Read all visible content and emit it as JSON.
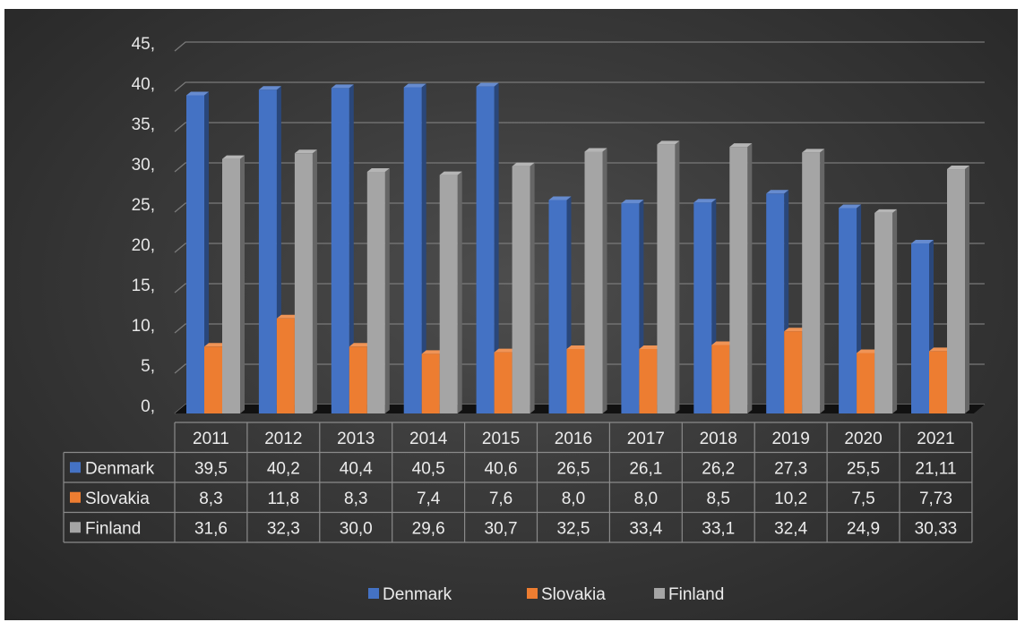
{
  "chart_data": {
    "type": "bar",
    "categories": [
      "2011",
      "2012",
      "2013",
      "2014",
      "2015",
      "2016",
      "2017",
      "2018",
      "2019",
      "2020",
      "2021"
    ],
    "series": [
      {
        "name": "Denmark",
        "color": "#4472c4",
        "values": [
          39.5,
          40.2,
          40.4,
          40.5,
          40.6,
          26.5,
          26.1,
          26.2,
          27.3,
          25.5,
          21.11
        ],
        "labels": [
          "39,5",
          "40,2",
          "40,4",
          "40,5",
          "40,6",
          "26,5",
          "26,1",
          "26,2",
          "27,3",
          "25,5",
          "21,11"
        ]
      },
      {
        "name": "Slovakia",
        "color": "#ed7d31",
        "values": [
          8.3,
          11.8,
          8.3,
          7.4,
          7.6,
          8.0,
          8.0,
          8.5,
          10.2,
          7.5,
          7.73
        ],
        "labels": [
          "8,3",
          "11,8",
          "8,3",
          "7,4",
          "7,6",
          "8,0",
          "8,0",
          "8,5",
          "10,2",
          "7,5",
          "7,73"
        ]
      },
      {
        "name": "Finland",
        "color": "#a5a5a5",
        "values": [
          31.6,
          32.3,
          30.0,
          29.6,
          30.7,
          32.5,
          33.4,
          33.1,
          32.4,
          24.9,
          30.33
        ],
        "labels": [
          "31,6",
          "32,3",
          "30,0",
          "29,6",
          "30,7",
          "32,5",
          "33,4",
          "33,1",
          "32,4",
          "24,9",
          "30,33"
        ]
      }
    ],
    "yticks": [
      "0,",
      "5,",
      "10,",
      "15,",
      "20,",
      "25,",
      "30,",
      "35,",
      "40,",
      "45,"
    ],
    "ylim": [
      0,
      45
    ],
    "grid": true,
    "legend_position": "bottom",
    "data_table": true
  }
}
